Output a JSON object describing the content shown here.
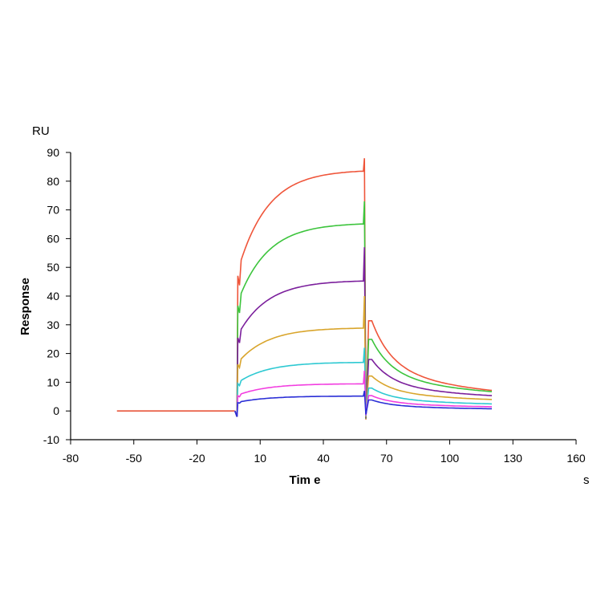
{
  "chart_data": {
    "type": "line",
    "title": "",
    "xlabel": "Tim e",
    "xunit": "s",
    "ylabel": "Response",
    "yunit": "RU",
    "xlim": [
      -80,
      160
    ],
    "ylim": [
      -10,
      90
    ],
    "xticks": [
      -80,
      -50,
      -20,
      10,
      40,
      70,
      100,
      130,
      160
    ],
    "yticks": [
      -10,
      0,
      10,
      20,
      30,
      40,
      50,
      60,
      70,
      80,
      90
    ],
    "grid": false,
    "legend": "none",
    "baseline": {
      "color": "#e8553b",
      "x": [
        -58,
        -2
      ],
      "y": [
        0,
        0
      ]
    },
    "series": [
      {
        "color": "#ef553a",
        "plateau": 84,
        "dissoc_end": 4.2,
        "spike": 88
      },
      {
        "color": "#3cc43c",
        "plateau": 65.5,
        "dissoc_end": 4.5,
        "spike": 73
      },
      {
        "color": "#7b1f9c",
        "plateau": 45.5,
        "dissoc_end": 3.8,
        "spike": 57
      },
      {
        "color": "#d9a52c",
        "plateau": 29,
        "dissoc_end": 3.0,
        "spike": 40
      },
      {
        "color": "#2ec9d2",
        "plateau": 17,
        "dissoc_end": 1.8,
        "spike": 22
      },
      {
        "color": "#f23ee0",
        "plateau": 9.5,
        "dissoc_end": 1.0,
        "spike": 14
      },
      {
        "color": "#2a2ed6",
        "plateau": 5.2,
        "dissoc_end": 0.4,
        "spike": 7
      }
    ],
    "association_start": -1,
    "dissociation_start": 59,
    "end_time": 120
  }
}
